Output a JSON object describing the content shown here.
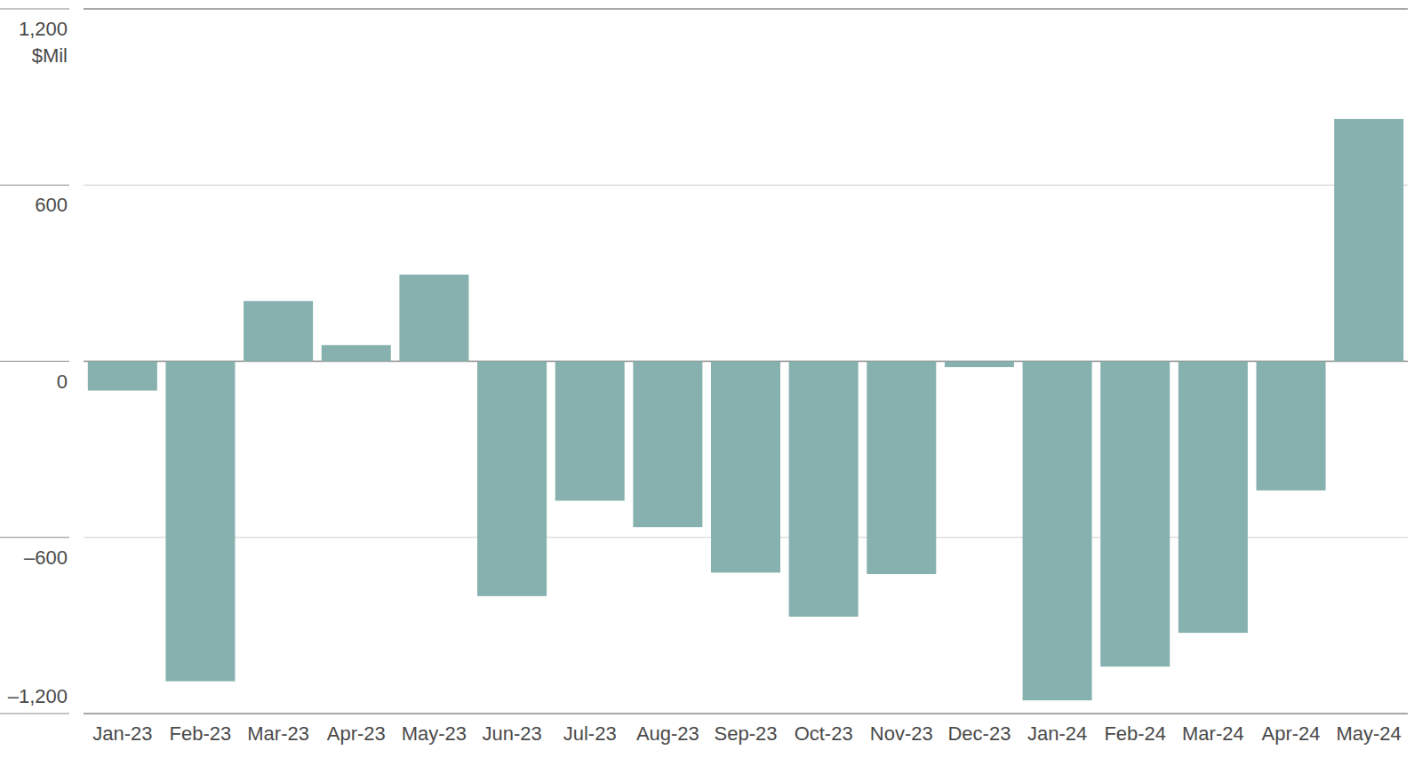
{
  "chart_data": {
    "type": "bar",
    "y_label": "$Mil",
    "categories": [
      "Jan-23",
      "Feb-23",
      "Mar-23",
      "Apr-23",
      "May-23",
      "Jun-23",
      "Jul-23",
      "Aug-23",
      "Sep-23",
      "Oct-23",
      "Nov-23",
      "Dec-23",
      "Jan-24",
      "Feb-24",
      "Mar-24",
      "Apr-24",
      "May-24"
    ],
    "values": [
      -100,
      -1090,
      205,
      55,
      295,
      -800,
      -475,
      -565,
      -720,
      -870,
      -725,
      -20,
      -1155,
      -1040,
      -925,
      -440,
      825
    ],
    "color": "#86b1ae",
    "ylim": [
      -1200,
      1200
    ],
    "yticks": [
      {
        "value": -1200,
        "label": "–1,200"
      },
      {
        "value": -600,
        "label": "–600"
      },
      0,
      600,
      {
        "value": 1200,
        "label": "1,200"
      }
    ],
    "grid": true
  }
}
